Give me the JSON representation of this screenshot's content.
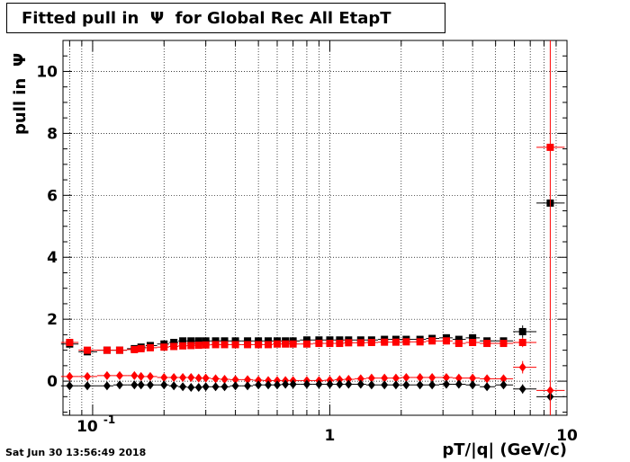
{
  "title": "Fitted pull in  Ψ  for Global Rec All EtapT",
  "timestamp": "Sat Jun 30 13:56:49 2018",
  "chart_data": {
    "type": "scatter",
    "title": "Fitted pull in  Ψ  for Global Rec All EtapT",
    "xlabel": "pT/|q| (GeV/c)",
    "ylabel": "pull in  Ψ",
    "xscale": "log",
    "xlim": [
      0.075,
      10
    ],
    "ylim": [
      -1.1,
      11
    ],
    "grid": true,
    "x_ticks": [
      "10^{-1}",
      "1",
      "10"
    ],
    "y_ticks": [
      0,
      2,
      4,
      6,
      8,
      10
    ],
    "x": [
      0.08,
      0.095,
      0.115,
      0.13,
      0.15,
      0.16,
      0.175,
      0.2,
      0.22,
      0.24,
      0.26,
      0.28,
      0.3,
      0.33,
      0.36,
      0.4,
      0.45,
      0.5,
      0.55,
      0.6,
      0.65,
      0.7,
      0.8,
      0.9,
      1.0,
      1.1,
      1.2,
      1.35,
      1.5,
      1.7,
      1.9,
      2.1,
      2.4,
      2.7,
      3.1,
      3.5,
      4.0,
      4.6,
      5.4,
      6.5,
      8.5
    ],
    "series": [
      {
        "color": "#000000",
        "marker": "square",
        "values": [
          1.2,
          0.95,
          1.0,
          1.0,
          1.05,
          1.1,
          1.15,
          1.2,
          1.25,
          1.3,
          1.3,
          1.3,
          1.3,
          1.3,
          1.3,
          1.3,
          1.3,
          1.3,
          1.3,
          1.3,
          1.3,
          1.3,
          1.33,
          1.33,
          1.33,
          1.33,
          1.33,
          1.33,
          1.33,
          1.35,
          1.35,
          1.35,
          1.35,
          1.38,
          1.4,
          1.35,
          1.4,
          1.3,
          1.3,
          1.6,
          5.75
        ],
        "errors": [
          0.1,
          0.05,
          0.05,
          0.05,
          0.05,
          0.05,
          0.05,
          0.05,
          0.05,
          0.05,
          0.05,
          0.05,
          0.05,
          0.05,
          0.05,
          0.05,
          0.05,
          0.05,
          0.05,
          0.05,
          0.05,
          0.05,
          0.05,
          0.05,
          0.05,
          0.05,
          0.05,
          0.05,
          0.05,
          0.05,
          0.05,
          0.05,
          0.05,
          0.05,
          0.05,
          0.05,
          0.05,
          0.05,
          0.08,
          0.2,
          0.0
        ]
      },
      {
        "color": "#ff0000",
        "marker": "square",
        "values": [
          1.25,
          1.0,
          1.0,
          1.0,
          1.02,
          1.05,
          1.08,
          1.1,
          1.12,
          1.14,
          1.15,
          1.16,
          1.17,
          1.18,
          1.18,
          1.18,
          1.18,
          1.18,
          1.18,
          1.2,
          1.2,
          1.2,
          1.2,
          1.22,
          1.22,
          1.22,
          1.24,
          1.24,
          1.25,
          1.26,
          1.26,
          1.27,
          1.27,
          1.3,
          1.3,
          1.22,
          1.25,
          1.22,
          1.22,
          1.25,
          7.55
        ],
        "errors": [
          0.1,
          0.05,
          0.05,
          0.05,
          0.05,
          0.05,
          0.05,
          0.05,
          0.05,
          0.05,
          0.05,
          0.05,
          0.05,
          0.05,
          0.05,
          0.05,
          0.05,
          0.05,
          0.05,
          0.05,
          0.05,
          0.05,
          0.05,
          0.05,
          0.05,
          0.05,
          0.05,
          0.05,
          0.05,
          0.05,
          0.05,
          0.05,
          0.05,
          0.05,
          0.05,
          0.05,
          0.05,
          0.05,
          0.08,
          0.15,
          0.0
        ]
      },
      {
        "color": "#ff0000",
        "marker": "diamond",
        "values": [
          0.15,
          0.15,
          0.18,
          0.18,
          0.18,
          0.15,
          0.15,
          0.12,
          0.12,
          0.12,
          0.12,
          0.1,
          0.1,
          0.08,
          0.06,
          0.05,
          0.05,
          0.03,
          0.02,
          0.02,
          0.02,
          0.02,
          0.02,
          0.02,
          0.03,
          0.05,
          0.06,
          0.08,
          0.1,
          0.1,
          0.1,
          0.12,
          0.12,
          0.12,
          0.12,
          0.1,
          0.1,
          0.08,
          0.08,
          0.45,
          -0.3
        ],
        "errors": [
          0.05,
          0.05,
          0.05,
          0.05,
          0.05,
          0.05,
          0.05,
          0.05,
          0.05,
          0.05,
          0.05,
          0.05,
          0.05,
          0.05,
          0.05,
          0.05,
          0.05,
          0.05,
          0.05,
          0.05,
          0.05,
          0.05,
          0.05,
          0.05,
          0.05,
          0.05,
          0.05,
          0.05,
          0.05,
          0.05,
          0.05,
          0.05,
          0.05,
          0.05,
          0.05,
          0.05,
          0.05,
          0.05,
          0.06,
          0.2,
          0.0
        ]
      },
      {
        "color": "#000000",
        "marker": "diamond",
        "values": [
          -0.15,
          -0.15,
          -0.15,
          -0.12,
          -0.12,
          -0.12,
          -0.12,
          -0.12,
          -0.15,
          -0.18,
          -0.2,
          -0.2,
          -0.18,
          -0.18,
          -0.18,
          -0.15,
          -0.15,
          -0.12,
          -0.12,
          -0.12,
          -0.1,
          -0.1,
          -0.1,
          -0.1,
          -0.1,
          -0.1,
          -0.1,
          -0.1,
          -0.12,
          -0.12,
          -0.12,
          -0.12,
          -0.12,
          -0.12,
          -0.1,
          -0.1,
          -0.12,
          -0.18,
          -0.12,
          -0.25,
          -0.5
        ],
        "errors": [
          0.05,
          0.05,
          0.05,
          0.05,
          0.05,
          0.05,
          0.05,
          0.05,
          0.05,
          0.05,
          0.05,
          0.05,
          0.05,
          0.05,
          0.05,
          0.05,
          0.05,
          0.05,
          0.05,
          0.05,
          0.05,
          0.05,
          0.05,
          0.05,
          0.05,
          0.05,
          0.05,
          0.05,
          0.05,
          0.05,
          0.05,
          0.05,
          0.05,
          0.05,
          0.05,
          0.05,
          0.05,
          0.05,
          0.06,
          0.15,
          0.0
        ]
      }
    ]
  }
}
